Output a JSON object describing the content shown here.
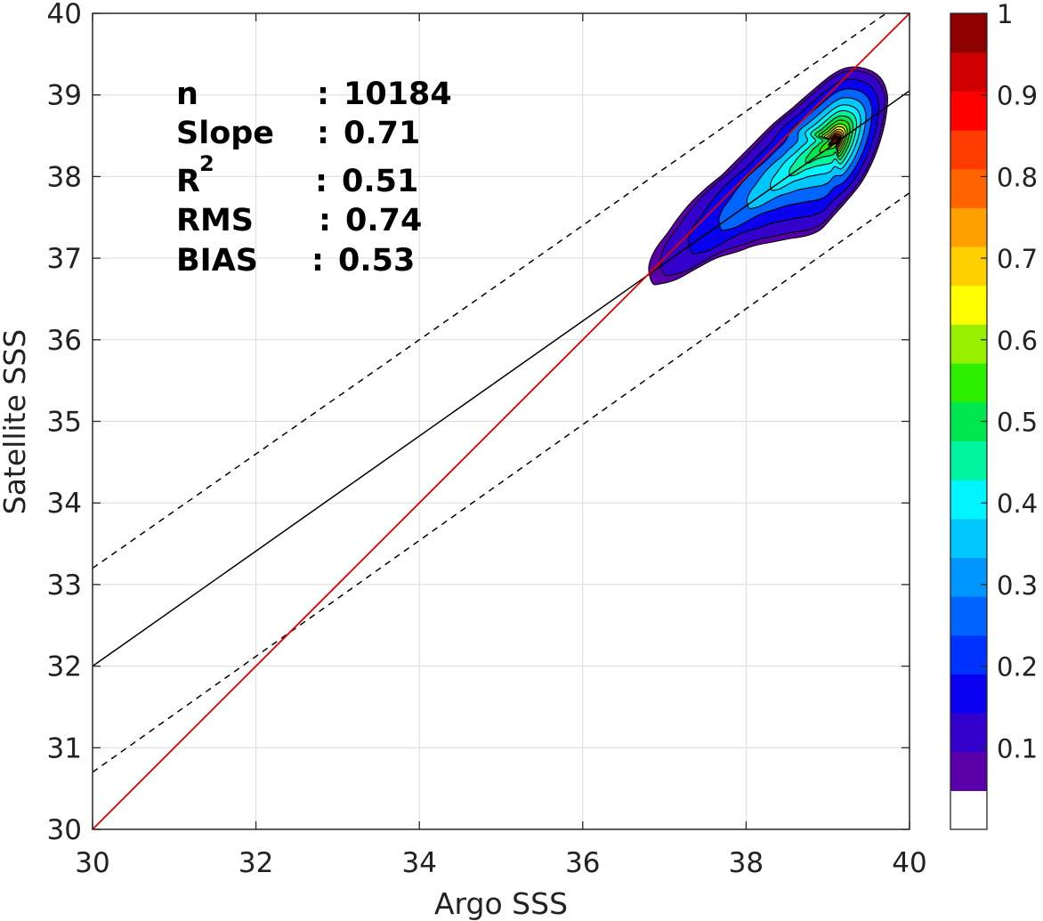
{
  "chart_data": {
    "type": "contour-scatter",
    "xlabel": "Argo SSS",
    "ylabel": "Satellite SSS",
    "xlim": [
      30,
      40
    ],
    "ylim": [
      30,
      40
    ],
    "xticks": [
      "30",
      "32",
      "34",
      "36",
      "38",
      "40"
    ],
    "yticks": [
      "30",
      "31",
      "32",
      "33",
      "34",
      "35",
      "36",
      "37",
      "38",
      "39",
      "40"
    ],
    "grid": true,
    "stats": [
      {
        "label": "n",
        "sep": ":",
        "value": "10184"
      },
      {
        "label": "Slope",
        "sep": ":",
        "value": "0.71"
      },
      {
        "label": "R",
        "sup": "2",
        "sep": ":",
        "value": "0.51"
      },
      {
        "label": "RMS",
        "sep": ":",
        "value": "0.74"
      },
      {
        "label": "BIAS",
        "sep": ":",
        "value": "0.53"
      }
    ],
    "lines": {
      "one_to_one": {
        "x": [
          30,
          40
        ],
        "y": [
          30,
          40
        ],
        "color": "#e00000"
      },
      "fit": {
        "x": [
          30,
          40
        ],
        "y": [
          32.0,
          39.05
        ],
        "color": "#000000"
      },
      "upper_bound": {
        "x": [
          30,
          40
        ],
        "y": [
          33.2,
          40.2
        ],
        "color": "#000000",
        "style": "dashed"
      },
      "lower_bound": {
        "x": [
          30,
          40
        ],
        "y": [
          30.7,
          37.8
        ],
        "color": "#000000",
        "style": "dashed"
      }
    },
    "density_peak": {
      "x": 39.1,
      "y": 38.45
    },
    "colorbar": {
      "range": [
        0,
        1
      ],
      "tick_labels": [
        "0.1",
        "0.2",
        "0.3",
        "0.4",
        "0.5",
        "0.6",
        "0.7",
        "0.8",
        "0.9",
        "1"
      ],
      "colors": [
        "#ffffff",
        "#5a00a8",
        "#3400cc",
        "#0a00f0",
        "#0032ff",
        "#0064ff",
        "#0096ff",
        "#00c8ff",
        "#00f5ff",
        "#00f5a0",
        "#00e650",
        "#2cf000",
        "#96f000",
        "#ffff00",
        "#ffd000",
        "#ffa000",
        "#ff6400",
        "#ff3c00",
        "#ff0000",
        "#d00000",
        "#8c0000"
      ]
    }
  }
}
